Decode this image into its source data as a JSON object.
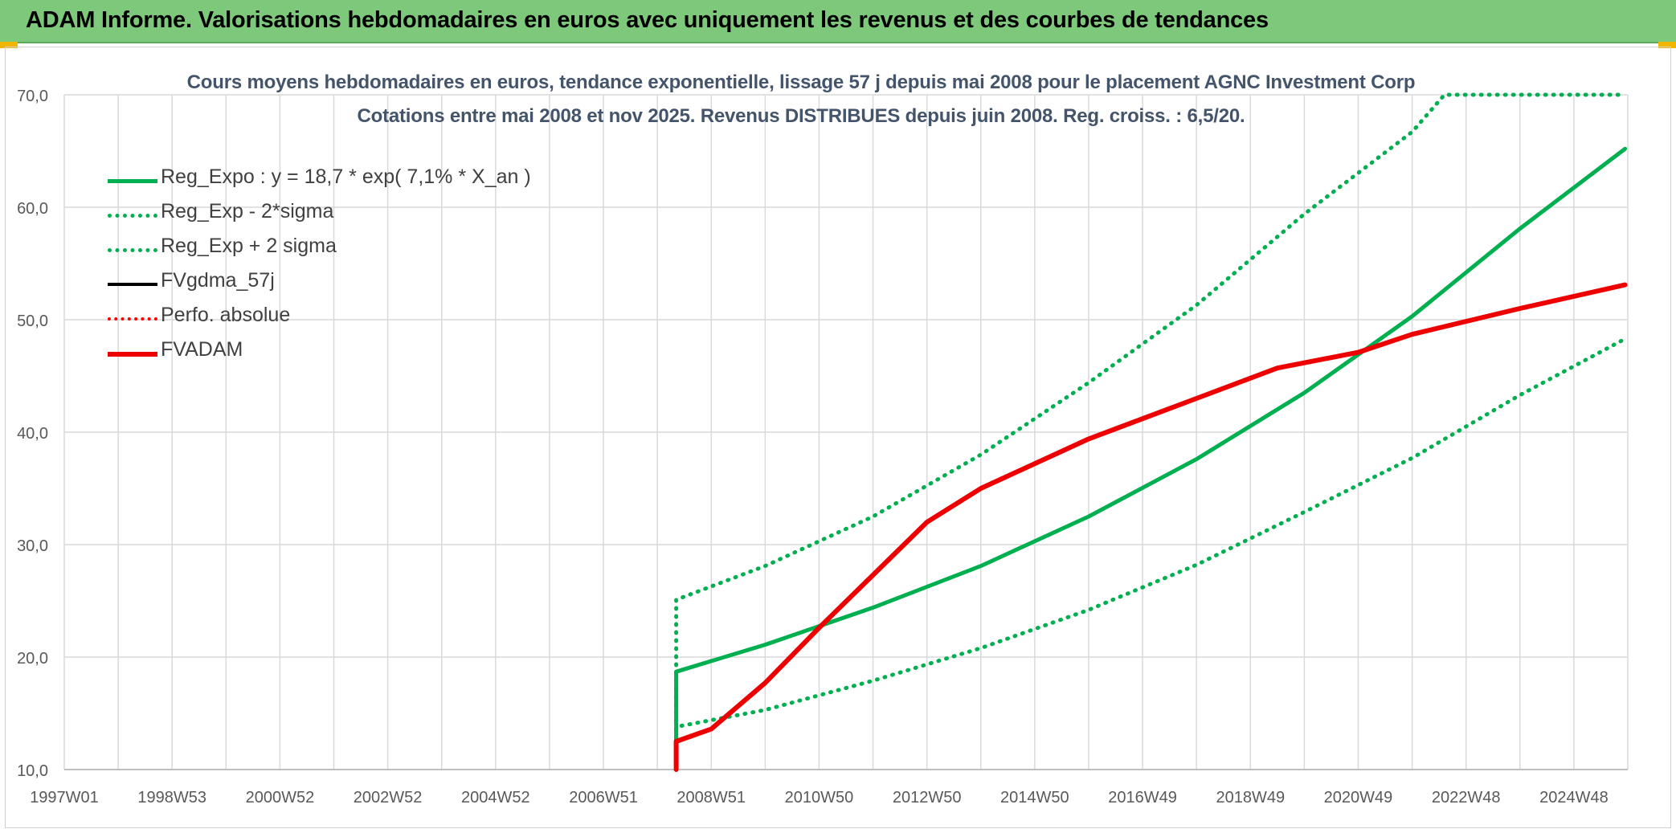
{
  "banner": {
    "title": "ADAM Informe. Valorisations hebdomadaires en euros avec uniquement les revenus et des courbes de tendances"
  },
  "chart_data": {
    "type": "line",
    "title": "Cours moyens hebdomadaires en euros, tendance exponentielle, lissage 57 j depuis mai 2008 pour le placement AGNC Investment Corp",
    "subtitle": "Cotations entre mai 2008 et nov 2025. Revenus DISTRIBUES depuis juin 2008. Reg. croiss. : 6,5/20.",
    "xlabel": "",
    "ylabel": "",
    "ylim": [
      10,
      70
    ],
    "yticks": [
      "10,0",
      "20,0",
      "30,0",
      "40,0",
      "50,0",
      "60,0",
      "70,0"
    ],
    "xlim": [
      1997.0,
      2026.0
    ],
    "xticks": [
      {
        "label": "1997W01",
        "x": 1997.0
      },
      {
        "label": "1998W53",
        "x": 1999.0
      },
      {
        "label": "2000W52",
        "x": 2001.0
      },
      {
        "label": "2002W52",
        "x": 2003.0
      },
      {
        "label": "2004W52",
        "x": 2005.0
      },
      {
        "label": "2006W51",
        "x": 2007.0
      },
      {
        "label": "2008W51",
        "x": 2009.0
      },
      {
        "label": "2010W50",
        "x": 2011.0
      },
      {
        "label": "2012W50",
        "x": 2013.0
      },
      {
        "label": "2014W50",
        "x": 2015.0
      },
      {
        "label": "2016W49",
        "x": 2017.0
      },
      {
        "label": "2018W49",
        "x": 2019.0
      },
      {
        "label": "2020W49",
        "x": 2021.0
      },
      {
        "label": "2022W48",
        "x": 2023.0
      },
      {
        "label": "2024W48",
        "x": 2025.0
      }
    ],
    "grid": true,
    "legend_position": "top-left",
    "series": [
      {
        "name": "Reg_Expo : y = 18,7 * exp( 7,1% *  X_an )",
        "color": "#00b050",
        "style": "solid",
        "width": 5,
        "points": [
          [
            2008.35,
            10
          ],
          [
            2008.35,
            18.7
          ],
          [
            2010,
            21.1
          ],
          [
            2012,
            24.4
          ],
          [
            2014,
            28.1
          ],
          [
            2016,
            32.5
          ],
          [
            2018,
            37.6
          ],
          [
            2020,
            43.5
          ],
          [
            2022,
            50.3
          ],
          [
            2024,
            58.1
          ],
          [
            2025.95,
            65.2
          ]
        ]
      },
      {
        "name": "Reg_Exp - 2*sigma",
        "color": "#00b050",
        "style": "dotted",
        "width": 5,
        "points": [
          [
            2008.35,
            10
          ],
          [
            2008.35,
            13.8
          ],
          [
            2010,
            15.3
          ],
          [
            2012,
            17.9
          ],
          [
            2014,
            20.8
          ],
          [
            2016,
            24.2
          ],
          [
            2018,
            28.2
          ],
          [
            2020,
            32.9
          ],
          [
            2022,
            37.7
          ],
          [
            2024,
            43.3
          ],
          [
            2025.95,
            48.3
          ]
        ]
      },
      {
        "name": "Reg_Exp + 2 sigma",
        "color": "#00b050",
        "style": "dotted",
        "width": 5,
        "points": [
          [
            2008.35,
            10
          ],
          [
            2008.35,
            25.1
          ],
          [
            2010,
            28.1
          ],
          [
            2012,
            32.5
          ],
          [
            2014,
            38.0
          ],
          [
            2016,
            44.4
          ],
          [
            2018,
            51.3
          ],
          [
            2020,
            59.4
          ],
          [
            2022,
            66.7
          ],
          [
            2022.6,
            70
          ],
          [
            2025.95,
            70
          ]
        ]
      },
      {
        "name": "FVgdma_57j",
        "color": "#000000",
        "style": "solid",
        "width": 4,
        "points": []
      },
      {
        "name": "Perfo. absolue",
        "color": "#ff0000",
        "style": "dotted",
        "width": 4,
        "points": []
      },
      {
        "name": "FVADAM",
        "color": "#ee0000",
        "style": "solid",
        "width": 6,
        "points": [
          [
            2008.35,
            10
          ],
          [
            2008.35,
            12.5
          ],
          [
            2009,
            13.6
          ],
          [
            2010,
            17.7
          ],
          [
            2011,
            22.6
          ],
          [
            2012,
            27.3
          ],
          [
            2013,
            32.0
          ],
          [
            2014,
            35.0
          ],
          [
            2016,
            39.4
          ],
          [
            2018,
            43.0
          ],
          [
            2019.5,
            45.7
          ],
          [
            2021,
            47.1
          ],
          [
            2022,
            48.7
          ],
          [
            2024,
            51.0
          ],
          [
            2025.95,
            53.1
          ]
        ]
      }
    ]
  }
}
